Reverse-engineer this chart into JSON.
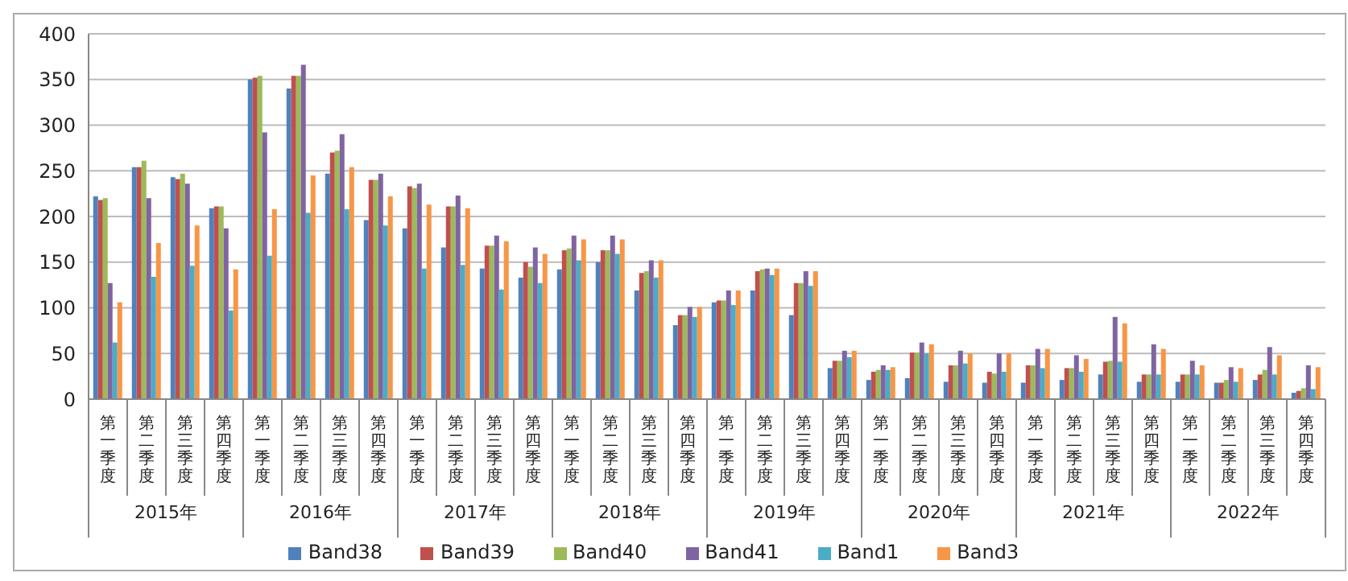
{
  "chart_data": {
    "type": "bar",
    "categories": [
      "第一季度",
      "第二季度",
      "第三季度",
      "第四季度",
      "第一季度",
      "第二季度",
      "第三季度",
      "第四季度",
      "第一季度",
      "第二季度",
      "第三季度",
      "第四季度",
      "第一季度",
      "第二季度",
      "第三季度",
      "第四季度",
      "第一季度",
      "第二季度",
      "第三季度",
      "第四季度",
      "第一季度",
      "第二季度",
      "第三季度",
      "第四季度",
      "第一季度",
      "第二季度",
      "第三季度",
      "第四季度",
      "第一季度",
      "第二季度",
      "第三季度",
      "第四季度"
    ],
    "annotations": [
      "2015年",
      "2016年",
      "2017年",
      "2018年",
      "2019年",
      "2020年",
      "2021年",
      "2022年"
    ],
    "series": [
      {
        "name": "Band38",
        "color": "#4f81bd",
        "values": [
          222,
          254,
          243,
          209,
          350,
          340,
          247,
          196,
          187,
          166,
          143,
          133,
          142,
          150,
          119,
          81,
          106,
          119,
          92,
          34,
          21,
          23,
          19,
          18,
          18,
          21,
          27,
          19,
          19,
          18,
          21,
          7
        ]
      },
      {
        "name": "Band39",
        "color": "#c0504d",
        "values": [
          218,
          254,
          241,
          211,
          352,
          354,
          270,
          240,
          233,
          211,
          168,
          150,
          163,
          163,
          138,
          92,
          108,
          140,
          127,
          42,
          30,
          51,
          37,
          30,
          37,
          34,
          41,
          27,
          27,
          18,
          27,
          9
        ]
      },
      {
        "name": "Band40",
        "color": "#9bbb59",
        "values": [
          220,
          261,
          247,
          211,
          354,
          354,
          272,
          240,
          231,
          211,
          168,
          145,
          165,
          163,
          140,
          92,
          108,
          142,
          127,
          42,
          32,
          51,
          37,
          28,
          37,
          34,
          42,
          27,
          27,
          21,
          32,
          12
        ]
      },
      {
        "name": "Band41",
        "color": "#8064a2",
        "values": [
          127,
          220,
          236,
          187,
          292,
          366,
          290,
          247,
          236,
          223,
          179,
          166,
          179,
          179,
          152,
          101,
          119,
          143,
          140,
          53,
          37,
          62,
          53,
          50,
          55,
          48,
          90,
          60,
          42,
          35,
          57,
          37
        ]
      },
      {
        "name": "Band1",
        "color": "#4bacc6",
        "values": [
          62,
          134,
          146,
          97,
          157,
          204,
          208,
          190,
          143,
          147,
          120,
          127,
          152,
          159,
          133,
          90,
          103,
          136,
          124,
          46,
          32,
          50,
          39,
          30,
          34,
          30,
          41,
          27,
          27,
          19,
          27,
          11
        ]
      },
      {
        "name": "Band3",
        "color": "#f79646",
        "values": [
          106,
          171,
          190,
          142,
          208,
          245,
          254,
          222,
          213,
          209,
          173,
          159,
          175,
          175,
          152,
          101,
          119,
          143,
          140,
          53,
          35,
          60,
          50,
          50,
          55,
          44,
          83,
          55,
          37,
          34,
          48,
          35
        ]
      }
    ],
    "ylim": [
      0,
      400
    ],
    "yticks": [
      0,
      50,
      100,
      150,
      200,
      250,
      300,
      350,
      400
    ],
    "grid": "y",
    "legend": "bottom"
  }
}
